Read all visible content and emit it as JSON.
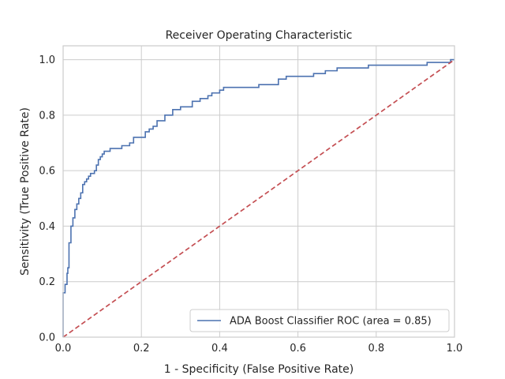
{
  "chart_data": {
    "type": "line",
    "title": "Receiver Operating Characteristic",
    "xlabel": "1 - Specificity (False Positive Rate)",
    "ylabel": "Sensitivity (True Positive Rate)",
    "xlim": [
      0,
      1
    ],
    "ylim": [
      0,
      1.05
    ],
    "xticks": [
      "0.0",
      "0.2",
      "0.4",
      "0.6",
      "0.8",
      "1.0"
    ],
    "yticks": [
      "0.0",
      "0.2",
      "0.4",
      "0.6",
      "0.8",
      "1.0"
    ],
    "grid": true,
    "legend_position": "lower-right",
    "series": [
      {
        "name": "ADA Boost Classifier ROC (area = 0.85)",
        "color": "#4c72b0",
        "style": "solid",
        "x": [
          0,
          0,
          0.005,
          0.005,
          0.01,
          0.01,
          0.012,
          0.012,
          0.015,
          0.015,
          0.02,
          0.02,
          0.025,
          0.025,
          0.03,
          0.03,
          0.035,
          0.035,
          0.04,
          0.04,
          0.045,
          0.045,
          0.05,
          0.05,
          0.055,
          0.055,
          0.06,
          0.06,
          0.065,
          0.065,
          0.07,
          0.07,
          0.08,
          0.08,
          0.085,
          0.085,
          0.09,
          0.09,
          0.095,
          0.095,
          0.1,
          0.1,
          0.105,
          0.105,
          0.12,
          0.12,
          0.15,
          0.15,
          0.17,
          0.17,
          0.18,
          0.18,
          0.21,
          0.21,
          0.22,
          0.22,
          0.23,
          0.23,
          0.24,
          0.24,
          0.26,
          0.26,
          0.28,
          0.28,
          0.3,
          0.3,
          0.33,
          0.33,
          0.35,
          0.35,
          0.37,
          0.37,
          0.38,
          0.38,
          0.4,
          0.4,
          0.41,
          0.41,
          0.5,
          0.5,
          0.55,
          0.55,
          0.57,
          0.57,
          0.64,
          0.64,
          0.67,
          0.67,
          0.7,
          0.7,
          0.78,
          0.78,
          0.93,
          0.93,
          0.99,
          0.99,
          1.0
        ],
        "y": [
          0,
          0.16,
          0.16,
          0.19,
          0.19,
          0.23,
          0.23,
          0.25,
          0.25,
          0.34,
          0.34,
          0.4,
          0.4,
          0.43,
          0.43,
          0.46,
          0.46,
          0.48,
          0.48,
          0.5,
          0.5,
          0.52,
          0.52,
          0.55,
          0.55,
          0.56,
          0.56,
          0.57,
          0.57,
          0.58,
          0.58,
          0.59,
          0.59,
          0.6,
          0.6,
          0.62,
          0.62,
          0.64,
          0.64,
          0.65,
          0.65,
          0.66,
          0.66,
          0.67,
          0.67,
          0.68,
          0.68,
          0.69,
          0.69,
          0.7,
          0.7,
          0.72,
          0.72,
          0.74,
          0.74,
          0.75,
          0.75,
          0.76,
          0.76,
          0.78,
          0.78,
          0.8,
          0.8,
          0.82,
          0.82,
          0.83,
          0.83,
          0.85,
          0.85,
          0.86,
          0.86,
          0.87,
          0.87,
          0.88,
          0.88,
          0.89,
          0.89,
          0.9,
          0.9,
          0.91,
          0.91,
          0.93,
          0.93,
          0.94,
          0.94,
          0.95,
          0.95,
          0.96,
          0.96,
          0.97,
          0.97,
          0.98,
          0.98,
          0.99,
          0.99,
          1.0,
          1.0
        ]
      },
      {
        "color": "#c44e52",
        "style": "dashed",
        "x": [
          0,
          1
        ],
        "y": [
          0,
          1
        ]
      }
    ]
  }
}
